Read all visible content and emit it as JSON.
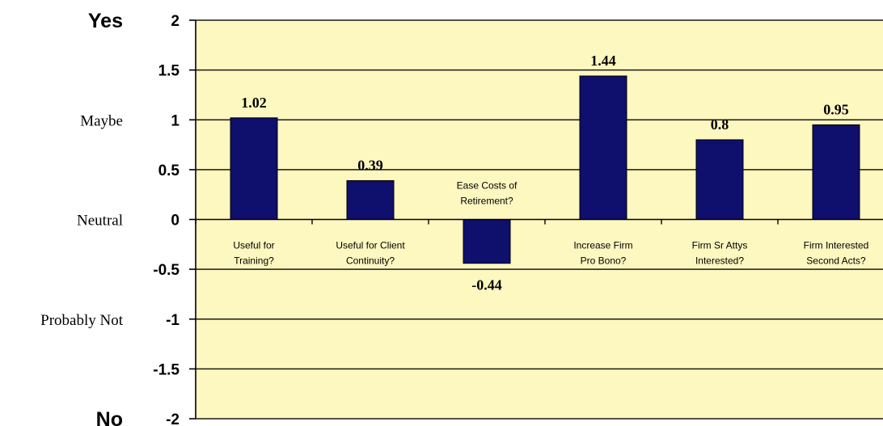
{
  "chart_data": {
    "type": "bar",
    "categories": [
      [
        "Useful for",
        "Training?"
      ],
      [
        "Useful for Client",
        "Continuity?"
      ],
      [
        "Ease Costs of",
        "Retirement?"
      ],
      [
        "Increase Firm",
        "Pro Bono?"
      ],
      [
        "Firm Sr Attys",
        "Interested?"
      ],
      [
        "Firm Interested",
        "Second Acts?"
      ]
    ],
    "values": [
      1.02,
      0.39,
      -0.44,
      1.44,
      0.8,
      0.95
    ],
    "data_labels": [
      "1.02",
      "0.39",
      "-0.44",
      "1.44",
      "0.8",
      "0.95"
    ],
    "ylim": [
      -2,
      2
    ],
    "yticks": [
      "2",
      "1.5",
      "1",
      "0.5",
      "0",
      "-0.5",
      "-1",
      "-1.5",
      "-2"
    ],
    "ytick_values": [
      2,
      1.5,
      1,
      0.5,
      0,
      -0.5,
      -1,
      -1.5,
      -2
    ],
    "side_labels": [
      {
        "text": "Yes",
        "value": 2,
        "style": "bold"
      },
      {
        "text": "Maybe",
        "value": 1,
        "style": "normal"
      },
      {
        "text": "Neutral",
        "value": 0,
        "style": "normal"
      },
      {
        "text": "Probably Not",
        "value": -1,
        "style": "normal"
      },
      {
        "text": "No",
        "value": -2,
        "style": "bold"
      }
    ],
    "grid": true,
    "colors": {
      "bar": "#0f0f6e",
      "plot_background": "#fdf7c0",
      "gridline": "#1a1a1a"
    }
  }
}
